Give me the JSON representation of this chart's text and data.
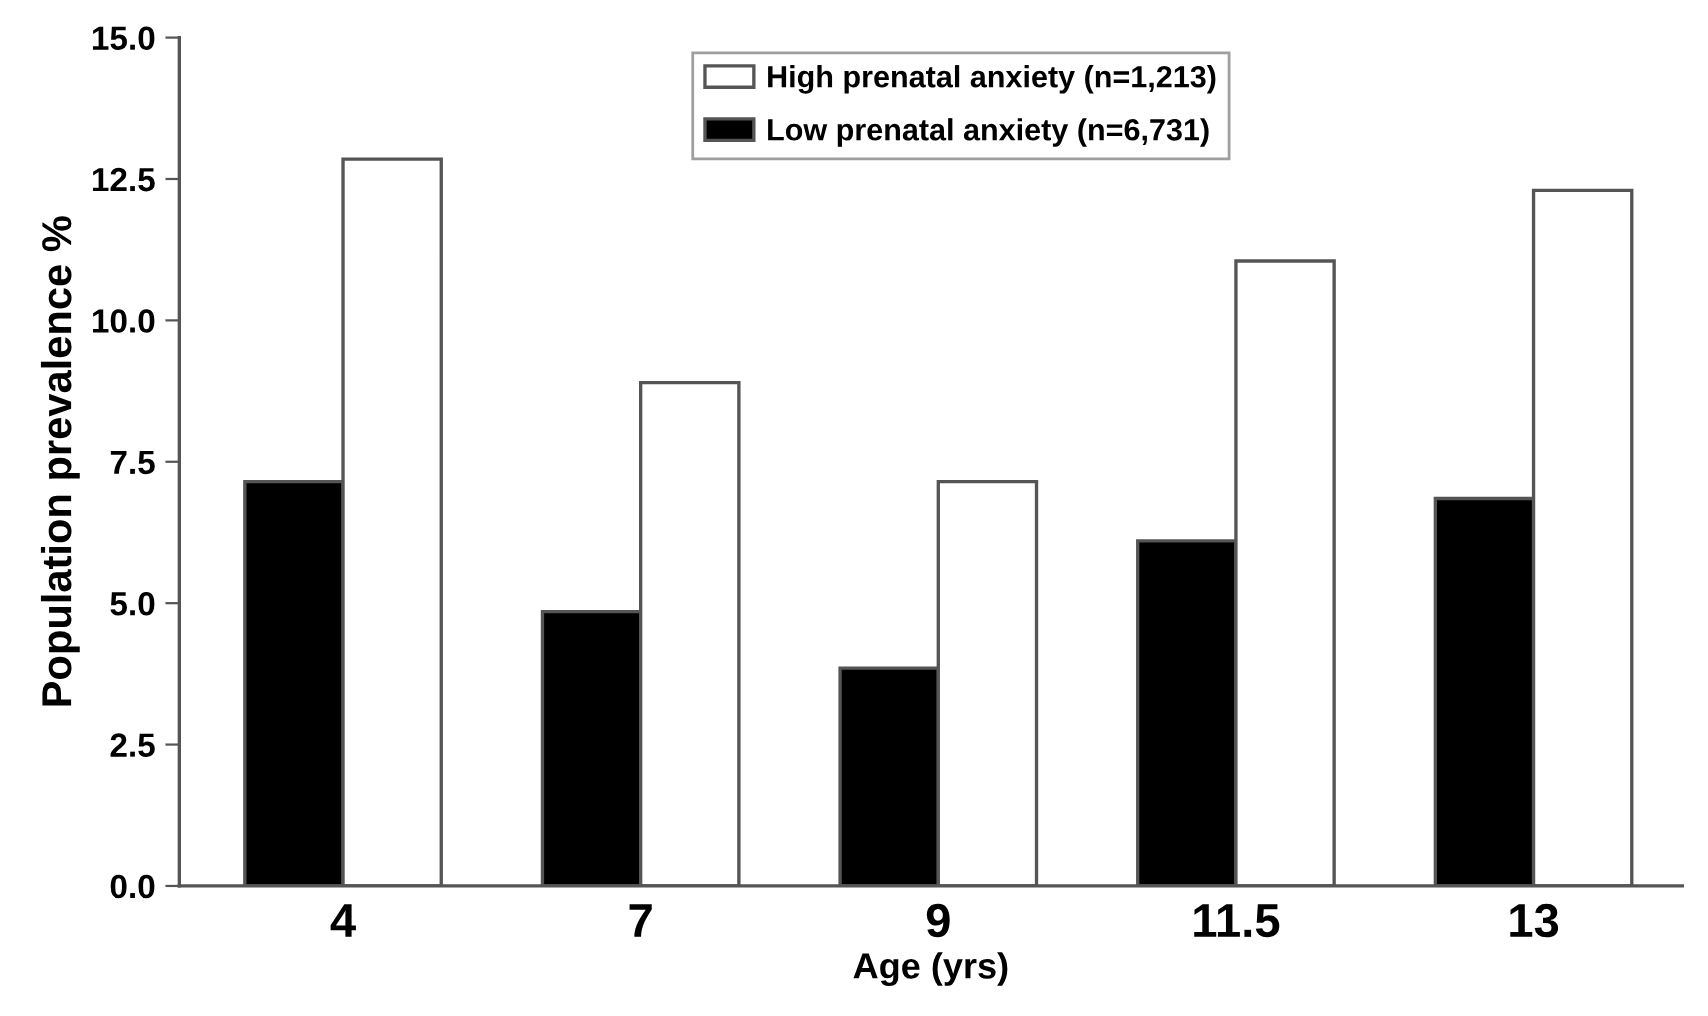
{
  "chart_data": {
    "type": "bar",
    "xlabel": "Age (yrs)",
    "ylabel": "Population prevalence %",
    "categories": [
      "4",
      "7",
      "9",
      "11.5",
      "13"
    ],
    "series": [
      {
        "name": "Low prenatal anxiety (n=6,731)",
        "color": "#000000",
        "values": [
          7.15,
          4.85,
          3.85,
          6.1,
          6.85
        ]
      },
      {
        "name": "High prenatal anxiety (n=1,213)",
        "color": "#ffffff",
        "values": [
          12.85,
          8.9,
          7.15,
          11.05,
          12.3
        ]
      }
    ],
    "ylim": [
      0,
      15
    ],
    "yticks": [
      {
        "value": 0,
        "label": "0.0"
      },
      2.5,
      {
        "value": 5,
        "label": "5.0"
      },
      7.5,
      {
        "value": 10,
        "label": "10.0"
      },
      12.5,
      {
        "value": 15,
        "label": "15.0"
      }
    ],
    "grid": false,
    "legend": "top"
  }
}
